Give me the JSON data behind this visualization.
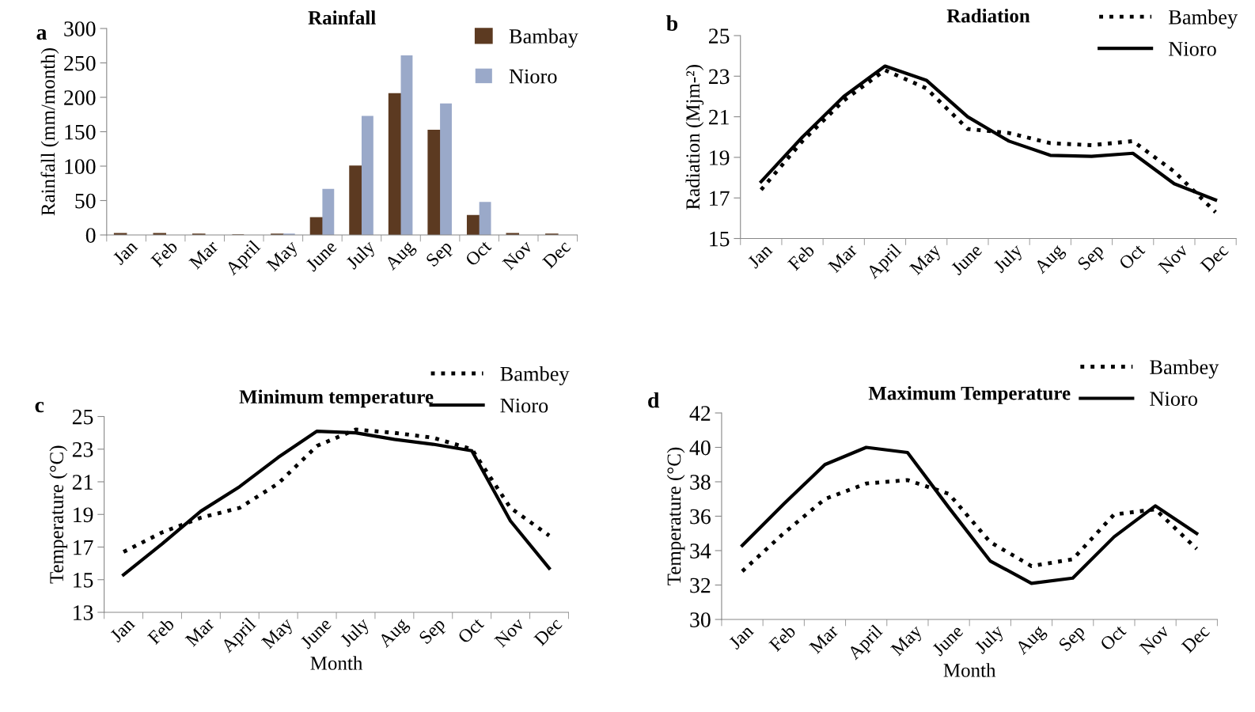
{
  "chart_data": [
    {
      "type": "bar",
      "title": "Rainfall",
      "ylabel": "Rainfall (mm/month)",
      "annotations": [
        "a"
      ],
      "categories": [
        "Jan",
        "Feb",
        "Mar",
        "April",
        "May",
        "June",
        "July",
        "Aug",
        "Sep",
        "Oct",
        "Nov",
        "Dec"
      ],
      "series": [
        {
          "name": "Bambay",
          "color": "#5c3a21",
          "values": [
            2,
            2,
            1,
            0,
            1,
            25,
            100,
            205,
            152,
            28,
            2,
            1
          ]
        },
        {
          "name": "Nioro",
          "color": "#9aa9c9",
          "values": [
            0,
            0,
            0,
            0,
            2,
            67,
            173,
            261,
            191,
            48,
            0,
            0
          ]
        }
      ],
      "ylim": [
        0,
        300
      ],
      "yticks": [
        0,
        50,
        100,
        150,
        200,
        250,
        300
      ],
      "grid": false,
      "legend": "top right"
    },
    {
      "type": "line",
      "title": "Radiation",
      "ylabel": "Radiation (Mjm-²)",
      "annotations": [
        "b"
      ],
      "categories": [
        "Jan",
        "Feb",
        "Mar",
        "April",
        "May",
        "June",
        "July",
        "Aug",
        "Sep",
        "Oct",
        "Nov",
        "Dec"
      ],
      "series": [
        {
          "name": "Bambey",
          "color": "#000000",
          "line_style": "dotted",
          "values": [
            17.4,
            19.8,
            21.8,
            23.3,
            22.4,
            20.4,
            20.2,
            19.7,
            19.6,
            19.8,
            18.3,
            16.3
          ]
        },
        {
          "name": "Nioro",
          "color": "#000000",
          "line_style": "solid",
          "values": [
            17.8,
            20.0,
            22.0,
            23.5,
            22.8,
            21.0,
            19.8,
            19.1,
            19.05,
            19.2,
            17.7,
            16.9
          ]
        }
      ],
      "ylim": [
        15,
        25
      ],
      "yticks": [
        15,
        17,
        19,
        21,
        23,
        25
      ],
      "grid": false,
      "legend": "top right"
    },
    {
      "type": "line",
      "title": "Minimum temperature",
      "xlabel": "Month",
      "ylabel": "Temperature (°C)",
      "annotations": [
        "c"
      ],
      "categories": [
        "Jan",
        "Feb",
        "Mar",
        "April",
        "May",
        "June",
        "July",
        "Aug",
        "Sep",
        "Oct",
        "Nov",
        "Dec"
      ],
      "series": [
        {
          "name": "Bambey",
          "color": "#000000",
          "line_style": "dotted",
          "values": [
            16.7,
            17.9,
            18.8,
            19.4,
            20.9,
            23.2,
            24.2,
            24.0,
            23.7,
            23.0,
            19.4,
            17.7
          ]
        },
        {
          "name": "Nioro",
          "color": "#000000",
          "line_style": "solid",
          "values": [
            15.3,
            17.2,
            19.2,
            20.7,
            22.5,
            24.1,
            24.0,
            23.6,
            23.3,
            22.9,
            18.6,
            15.7
          ]
        }
      ],
      "ylim": [
        13,
        25
      ],
      "yticks": [
        13,
        15,
        17,
        19,
        21,
        23,
        25
      ],
      "grid": false,
      "legend": "top right"
    },
    {
      "type": "line",
      "title": "Maximum Temperature",
      "xlabel": "Month",
      "ylabel": "Temperature (°C)",
      "annotations": [
        "d"
      ],
      "categories": [
        "Jan",
        "Feb",
        "Mar",
        "April",
        "May",
        "June",
        "July",
        "Aug",
        "Sep",
        "Oct",
        "Nov",
        "Dec"
      ],
      "series": [
        {
          "name": "Bambey",
          "color": "#000000",
          "line_style": "dotted",
          "values": [
            32.8,
            35.0,
            37.0,
            37.9,
            38.1,
            37.3,
            34.5,
            33.1,
            33.5,
            36.1,
            36.4,
            34.1
          ]
        },
        {
          "name": "Nioro",
          "color": "#000000",
          "line_style": "solid",
          "values": [
            34.3,
            36.7,
            39.0,
            40.0,
            39.7,
            36.5,
            33.4,
            32.1,
            32.4,
            34.8,
            36.6,
            35.0
          ]
        }
      ],
      "ylim": [
        30,
        42
      ],
      "yticks": [
        30,
        32,
        34,
        36,
        38,
        40,
        42
      ],
      "grid": false,
      "legend": "top right"
    }
  ]
}
